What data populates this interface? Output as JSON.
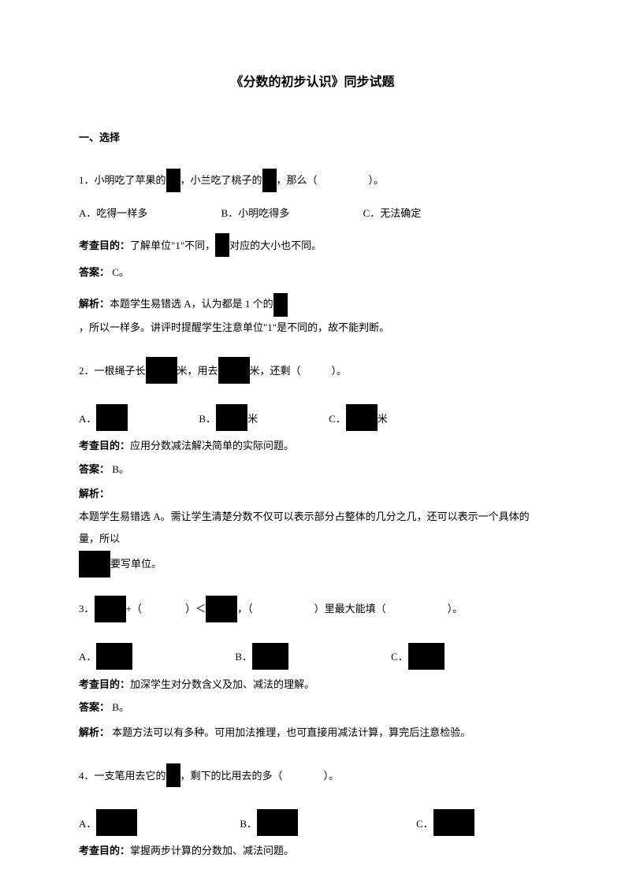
{
  "title": "《分数的初步认识》同步试题",
  "section_header": "一、选择",
  "q1": {
    "text_before": "1．小明吃了苹果的",
    "text_mid": "，小兰吃了桃子的",
    "text_after": "，那么（　　　　　）。",
    "opt_a": "A．吃得一样多",
    "opt_b": "B．小明吃得多",
    "opt_c": "C．无法确定",
    "purpose_label": "考查目的：",
    "purpose_before": "了解单位\"1\"不同，",
    "purpose_after": "对应的大小也不同。",
    "answer_label": "答案：",
    "answer_text": "C。",
    "analysis_label": "解析：",
    "analysis_before": "本题学生易错选 A，认为都是 1 个的",
    "analysis_after": "，所以一样多。讲评时提醒学生注意单位\"1\"是不同的，故不能判断。"
  },
  "q2": {
    "text_before": "2．一根绳子长",
    "text_mid1": "米，用去",
    "text_mid2": "米，还剩（　　　）。",
    "opt_a": "A．",
    "opt_b": "B．",
    "opt_b_after": "米",
    "opt_c": "C．",
    "opt_c_after": "米",
    "purpose_label": "考查目的：",
    "purpose_text": "应用分数减法解决简单的实际问题。",
    "answer_label": "答案：",
    "answer_text": "B。",
    "analysis_label": "解析：",
    "analysis_before": "本题学生易错选 A。需让学生清楚分数不仅可以表示部分占整体的几分之几，还可以表示一个具体的量，所以",
    "analysis_after": "要写单位。"
  },
  "q3": {
    "text_before": "3．",
    "text_mid1": "+（　　　　 ）＜",
    "text_mid2": "，（　　　　　　）里最大能填（　　　　　　）。",
    "opt_a": "A．",
    "opt_b": "B．",
    "opt_c": "C．",
    "purpose_label": "考查目的：",
    "purpose_text": "加深学生对分数含义及加、减法的理解。",
    "answer_label": "答案：",
    "answer_text": "B。",
    "analysis_label": "解析：",
    "analysis_text": "本题方法可以有多种。可用加法推理，也可直接用减法计算，算完后注意检验。"
  },
  "q4": {
    "text_before": "4．一支笔用去它的",
    "text_after": "，剩下的比用去的多（　　　　）。",
    "opt_a": "A．",
    "opt_b": "B．",
    "opt_c": "C．",
    "purpose_label": "考查目的：",
    "purpose_text": "掌握两步计算的分数加、减法问题。"
  }
}
